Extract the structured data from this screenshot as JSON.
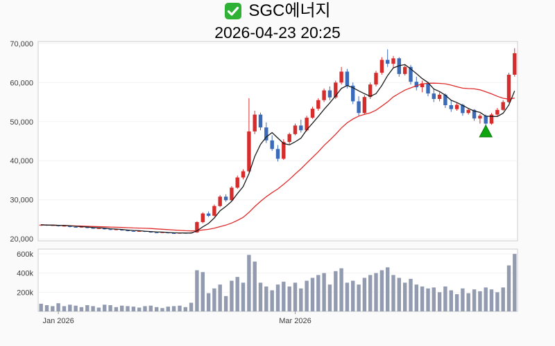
{
  "header": {
    "title": "SGC에너지",
    "datetime": "2026-04-23 20:25",
    "check_icon_color": "#2eb135"
  },
  "chart_data": {
    "type": "candlestick",
    "title": "SGC에너지",
    "subtitle": "2026-04-23 20:25",
    "price_axis": {
      "min": 19500,
      "max": 70500,
      "ticks": [
        20000,
        30000,
        40000,
        50000,
        60000,
        70000
      ],
      "tick_labels": [
        "20,000",
        "30,000",
        "40,000",
        "50,000",
        "60,000",
        "70,000"
      ]
    },
    "volume_axis": {
      "min": 0,
      "max": 650000,
      "ticks": [
        200000,
        400000,
        600000
      ],
      "tick_labels": [
        "200k",
        "400k",
        "600k"
      ]
    },
    "x_ticks": [
      {
        "index": 3,
        "label": "Jan 2026"
      },
      {
        "index": 44,
        "label": "Mar 2026"
      }
    ],
    "dates": [
      "2025-12-29",
      "2025-12-30",
      "2025-12-31",
      "2026-01-02",
      "2026-01-05",
      "2026-01-06",
      "2026-01-07",
      "2026-01-08",
      "2026-01-09",
      "2026-01-12",
      "2026-01-13",
      "2026-01-14",
      "2026-01-15",
      "2026-01-16",
      "2026-01-19",
      "2026-01-20",
      "2026-01-21",
      "2026-01-22",
      "2026-01-23",
      "2026-01-26",
      "2026-01-27",
      "2026-01-28",
      "2026-01-29",
      "2026-01-30",
      "2026-02-02",
      "2026-02-03",
      "2026-02-04",
      "2026-02-05",
      "2026-02-06",
      "2026-02-09",
      "2026-02-10",
      "2026-02-11",
      "2026-02-12",
      "2026-02-13",
      "2026-02-16",
      "2026-02-17",
      "2026-02-18",
      "2026-02-19",
      "2026-02-20",
      "2026-02-23",
      "2026-02-24",
      "2026-02-25",
      "2026-02-26",
      "2026-02-27",
      "2026-03-02",
      "2026-03-03",
      "2026-03-04",
      "2026-03-05",
      "2026-03-06",
      "2026-03-09",
      "2026-03-10",
      "2026-03-11",
      "2026-03-12",
      "2026-03-13",
      "2026-03-16",
      "2026-03-17",
      "2026-03-18",
      "2026-03-19",
      "2026-03-20",
      "2026-03-23",
      "2026-03-24",
      "2026-03-25",
      "2026-03-26",
      "2026-03-27",
      "2026-03-30",
      "2026-03-31",
      "2026-04-01",
      "2026-04-02",
      "2026-04-03",
      "2026-04-06",
      "2026-04-07",
      "2026-04-08",
      "2026-04-09",
      "2026-04-10",
      "2026-04-13",
      "2026-04-14",
      "2026-04-15",
      "2026-04-16",
      "2026-04-17",
      "2026-04-20",
      "2026-04-21",
      "2026-04-22",
      "2026-04-23"
    ],
    "ohlc": [
      [
        23400,
        23700,
        23300,
        23600
      ],
      [
        23600,
        23700,
        23350,
        23450
      ],
      [
        23450,
        23600,
        23300,
        23500
      ],
      [
        23500,
        23550,
        23150,
        23250
      ],
      [
        23250,
        23450,
        23150,
        23350
      ],
      [
        23350,
        23400,
        22950,
        23050
      ],
      [
        23050,
        23200,
        22850,
        22950
      ],
      [
        22950,
        23150,
        22900,
        23080
      ],
      [
        23080,
        23100,
        22700,
        22780
      ],
      [
        22780,
        22900,
        22580,
        22650
      ],
      [
        22650,
        22800,
        22550,
        22720
      ],
      [
        22720,
        22750,
        22380,
        22450
      ],
      [
        22450,
        22550,
        22230,
        22300
      ],
      [
        22300,
        22500,
        22200,
        22420
      ],
      [
        22420,
        22450,
        22080,
        22150
      ],
      [
        22150,
        22250,
        21930,
        22000
      ],
      [
        22000,
        22100,
        21830,
        21900
      ],
      [
        21900,
        22080,
        21850,
        22000
      ],
      [
        22000,
        22050,
        21730,
        21800
      ],
      [
        21800,
        21900,
        21580,
        21650
      ],
      [
        21650,
        21750,
        21480,
        21550
      ],
      [
        21550,
        21780,
        21500,
        21700
      ],
      [
        21700,
        21720,
        21380,
        21450
      ],
      [
        21450,
        21550,
        21280,
        21380
      ],
      [
        21380,
        21600,
        21300,
        21520
      ],
      [
        21520,
        21620,
        21350,
        21430
      ],
      [
        21430,
        21700,
        21380,
        21620
      ],
      [
        21650,
        24500,
        21550,
        24300
      ],
      [
        24300,
        26800,
        24000,
        26500
      ],
      [
        26500,
        27000,
        25600,
        25900
      ],
      [
        25900,
        28800,
        25700,
        28400
      ],
      [
        28400,
        31200,
        28100,
        30800
      ],
      [
        30800,
        31400,
        29500,
        29900
      ],
      [
        29900,
        33500,
        29700,
        33100
      ],
      [
        33100,
        36200,
        32800,
        35700
      ],
      [
        35700,
        37800,
        35200,
        37300
      ],
      [
        37300,
        56000,
        37000,
        47500
      ],
      [
        47500,
        52800,
        46800,
        51800
      ],
      [
        51800,
        52300,
        47800,
        48500
      ],
      [
        48500,
        49800,
        44500,
        45200
      ],
      [
        45200,
        46500,
        42500,
        43000
      ],
      [
        43000,
        44000,
        39800,
        40500
      ],
      [
        40500,
        45500,
        40200,
        44800
      ],
      [
        44800,
        47200,
        44300,
        46800
      ],
      [
        46800,
        49500,
        46500,
        49000
      ],
      [
        49000,
        50500,
        47200,
        47800
      ],
      [
        47800,
        51500,
        47500,
        51000
      ],
      [
        51000,
        53800,
        50700,
        53300
      ],
      [
        53300,
        56000,
        52800,
        55500
      ],
      [
        55500,
        58500,
        55000,
        58000
      ],
      [
        58000,
        59000,
        55500,
        56200
      ],
      [
        56200,
        60500,
        55800,
        60000
      ],
      [
        60000,
        64000,
        59500,
        62800
      ],
      [
        62800,
        63500,
        58500,
        59200
      ],
      [
        59200,
        60000,
        54500,
        55200
      ],
      [
        55200,
        56500,
        51500,
        52200
      ],
      [
        52200,
        56800,
        52000,
        56300
      ],
      [
        56300,
        60000,
        55800,
        59500
      ],
      [
        59500,
        63000,
        59000,
        62500
      ],
      [
        62500,
        66500,
        62000,
        65800
      ],
      [
        65800,
        68500,
        64000,
        64800
      ],
      [
        64800,
        66800,
        63800,
        66200
      ],
      [
        66200,
        66500,
        61500,
        62200
      ],
      [
        62200,
        64500,
        61800,
        64000
      ],
      [
        64000,
        64500,
        59500,
        60200
      ],
      [
        60200,
        61500,
        58000,
        58800
      ],
      [
        58800,
        60500,
        57500,
        59800
      ],
      [
        59800,
        60200,
        56500,
        57200
      ],
      [
        57200,
        58500,
        55000,
        55800
      ],
      [
        55800,
        57500,
        55200,
        56900
      ],
      [
        56900,
        57200,
        53500,
        54200
      ],
      [
        54200,
        55500,
        52500,
        53200
      ],
      [
        53200,
        54800,
        52800,
        54300
      ],
      [
        54300,
        54600,
        51500,
        52200
      ],
      [
        52200,
        53500,
        51800,
        53000
      ],
      [
        53000,
        53200,
        50200,
        50800
      ],
      [
        50800,
        52000,
        49500,
        51500
      ],
      [
        51500,
        51800,
        48800,
        49500
      ],
      [
        49500,
        52200,
        49200,
        51800
      ],
      [
        51800,
        53500,
        51200,
        53000
      ],
      [
        53000,
        55500,
        52800,
        55000
      ],
      [
        55000,
        62500,
        54800,
        62000
      ],
      [
        62000,
        68800,
        61500,
        67500
      ]
    ],
    "volume": [
      80000,
      65000,
      55000,
      85000,
      55000,
      70000,
      60000,
      45000,
      65000,
      55000,
      40000,
      70000,
      65000,
      45000,
      60000,
      55000,
      50000,
      40000,
      55000,
      60000,
      45000,
      35000,
      50000,
      55000,
      60000,
      45000,
      90000,
      430000,
      410000,
      190000,
      240000,
      280000,
      160000,
      320000,
      360000,
      300000,
      590000,
      520000,
      300000,
      260000,
      220000,
      280000,
      310000,
      260000,
      300000,
      240000,
      320000,
      350000,
      380000,
      400000,
      280000,
      420000,
      450000,
      300000,
      320000,
      280000,
      350000,
      380000,
      400000,
      430000,
      460000,
      380000,
      350000,
      300000,
      340000,
      280000,
      260000,
      240000,
      250000,
      200000,
      260000,
      220000,
      180000,
      240000,
      190000,
      230000,
      210000,
      250000,
      230000,
      200000,
      250000,
      480000,
      600000
    ],
    "moving_averages": [
      {
        "name": "MA5",
        "period": 5,
        "color": "#1a1a1a"
      },
      {
        "name": "MA20",
        "period": 20,
        "color": "#e02a2a"
      }
    ],
    "marker": {
      "type": "triangle-up",
      "index": 77,
      "price": 47500,
      "color": "#0fa50f",
      "edge_color": "#0a7a0a"
    },
    "colors": {
      "up": "#d62c2c",
      "down": "#3a6ab8",
      "volume": "#929bb0",
      "grid": "#f2f2f2",
      "spine": "#cccccc",
      "tick_text": "#3c3c3c"
    }
  }
}
